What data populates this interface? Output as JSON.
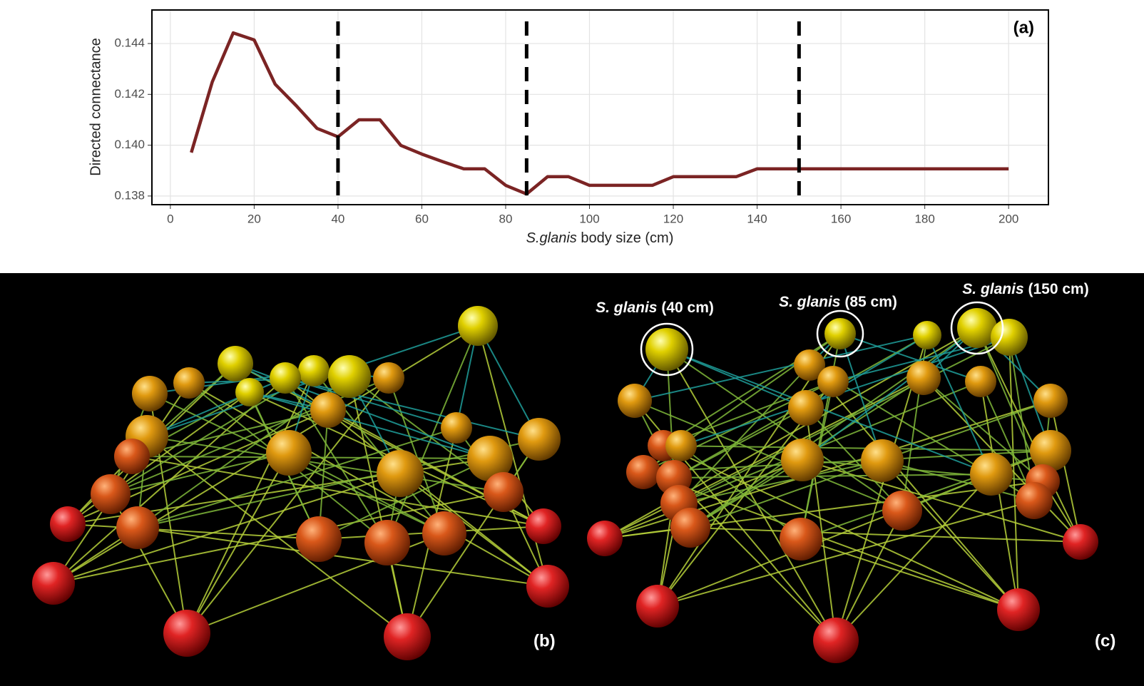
{
  "chart_data": {
    "type": "line",
    "panel_label": "(a)",
    "y_label": "Directed connectance",
    "x_label": {
      "italic": "S.glanis",
      "rest": "body size (cm)"
    },
    "x": [
      5,
      10,
      15,
      20,
      25,
      30,
      35,
      40,
      45,
      50,
      55,
      60,
      65,
      70,
      75,
      80,
      85,
      90,
      95,
      100,
      115,
      120,
      135,
      140,
      200
    ],
    "series": [
      {
        "color": "#7b2424",
        "values": [
          0.13971,
          0.14249,
          0.14442,
          0.14414,
          0.1424,
          0.14156,
          0.14066,
          0.14033,
          0.141,
          0.141,
          0.13999,
          0.13965,
          0.13935,
          0.13907,
          0.13907,
          0.13842,
          0.13808,
          0.13876,
          0.13876,
          0.13842,
          0.13842,
          0.13876,
          0.13876,
          0.13907,
          0.13907
        ]
      }
    ],
    "vlines": [
      40,
      85,
      150
    ],
    "xlim": [
      -4.4,
      209.5
    ],
    "ylim": [
      0.13766,
      0.14532
    ],
    "xticks": [
      0,
      20,
      40,
      60,
      80,
      100,
      120,
      140,
      160,
      180,
      200
    ],
    "yticks": [
      0.138,
      {
        "value": 0.14,
        "label": "0.140"
      },
      0.142,
      0.144
    ],
    "grid": true
  },
  "networks": {
    "panel_b": "(b)",
    "panel_c": "(c)",
    "annotations": [
      {
        "species": "S. glanis",
        "size": "(40 cm)"
      },
      {
        "species": "S. glanis",
        "size": "(85 cm)"
      },
      {
        "species": "S. glanis",
        "size": "(150 cm)"
      }
    ]
  }
}
